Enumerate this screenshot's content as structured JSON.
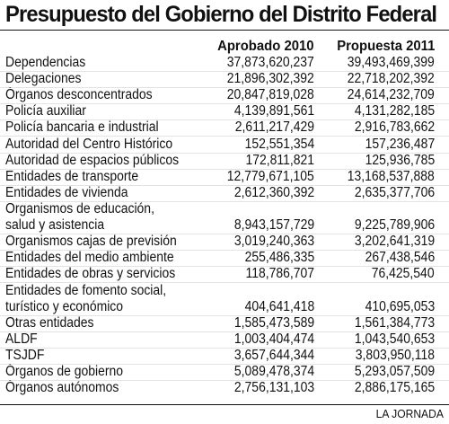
{
  "title": "Presupuesto del Gobierno del Distrito Federal",
  "columns": [
    "Aprobado 2010",
    "Propuesta 2011"
  ],
  "rows": [
    {
      "label": "Dependencias",
      "aprobado": "37,873,620,237",
      "propuesta": "39,493,469,399"
    },
    {
      "label": "Delegaciones",
      "aprobado": "21,896,302,392",
      "propuesta": "22,718,202,392"
    },
    {
      "label": "Órganos desconcentrados",
      "aprobado": "20,847,819,028",
      "propuesta": "24,614,232,709"
    },
    {
      "label": "Policía auxiliar",
      "aprobado": "4,139,891,561",
      "propuesta": "4,131,282,185"
    },
    {
      "label": "Policía bancaria e industrial",
      "aprobado": "2,611,217,429",
      "propuesta": "2,916,783,662"
    },
    {
      "label": "Autoridad del Centro Histórico",
      "aprobado": "152,551,354",
      "propuesta": "157,236,487"
    },
    {
      "label": "Autoridad de espacios públicos",
      "aprobado": "172,811,821",
      "propuesta": "125,936,785"
    },
    {
      "label": "Entidades de transporte",
      "aprobado": "12,779,671,105",
      "propuesta": "13,168,537,888"
    },
    {
      "label": "Entidades de vivienda",
      "aprobado": "2,612,360,392",
      "propuesta": "2,635,377,706"
    },
    {
      "label": "Organismos de educación,",
      "label2": "salud y asistencia",
      "aprobado": "8,943,157,729",
      "propuesta": "9,225,789,906"
    },
    {
      "label": "Organismos cajas de previsión",
      "aprobado": "3,019,240,363",
      "propuesta": "3,202,641,319"
    },
    {
      "label": "Entidades del medio ambiente",
      "aprobado": "255,486,335",
      "propuesta": "267,438,546"
    },
    {
      "label": "Entidades de obras y servicios",
      "aprobado": "118,786,707",
      "propuesta": "76,425,540"
    },
    {
      "label": "Entidades de fomento social,",
      "label2": "turístico y económico",
      "aprobado": "404,641,418",
      "propuesta": "410,695,053"
    },
    {
      "label": "Otras entidades",
      "aprobado": "1,585,473,589",
      "propuesta": "1,561,384,773"
    },
    {
      "label": "ALDF",
      "aprobado": "1,003,404,474",
      "propuesta": "1,043,540,653"
    },
    {
      "label": "TSJDF",
      "aprobado": "3,657,644,344",
      "propuesta": "3,803,950,118"
    },
    {
      "label": "Órganos de gobierno",
      "aprobado": "5,089,478,374",
      "propuesta": "5,293,057,509"
    },
    {
      "label": "Órganos autónomos",
      "aprobado": "2,756,131,103",
      "propuesta": "2,886,175,165"
    }
  ],
  "source": "LA JORNADA"
}
